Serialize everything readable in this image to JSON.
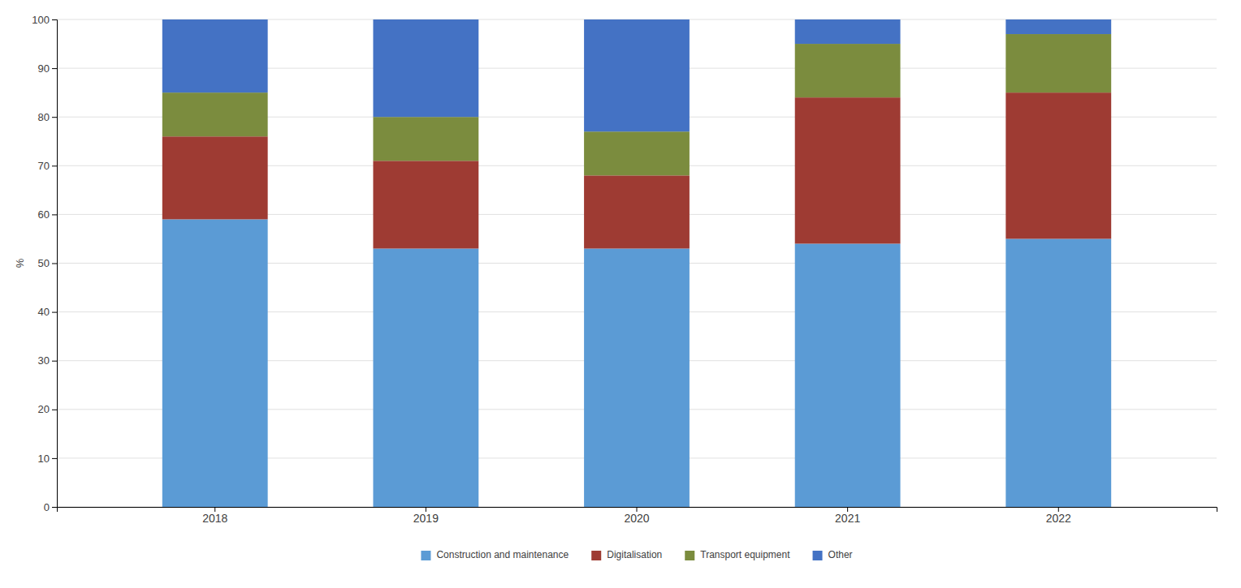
{
  "chart_data": {
    "type": "bar",
    "stacked": true,
    "categories": [
      "2018",
      "2019",
      "2020",
      "2021",
      "2022"
    ],
    "series": [
      {
        "name": "Construction and maintenance",
        "color": "#5B9BD5",
        "values": [
          59,
          53,
          53,
          54,
          55
        ]
      },
      {
        "name": "Digitalisation",
        "color": "#9E3B33",
        "values": [
          17,
          18,
          15,
          30,
          30
        ]
      },
      {
        "name": "Transport equipment",
        "color": "#7B8C3E",
        "values": [
          9,
          9,
          9,
          11,
          12
        ]
      },
      {
        "name": "Other",
        "color": "#4472C4",
        "values": [
          15,
          20,
          23,
          5,
          3
        ]
      }
    ],
    "ylabel": "%",
    "ylim": [
      0,
      100
    ],
    "yticks": [
      0,
      10,
      20,
      30,
      40,
      50,
      60,
      70,
      80,
      90,
      100
    ],
    "grid": true,
    "legend": "bottom"
  }
}
